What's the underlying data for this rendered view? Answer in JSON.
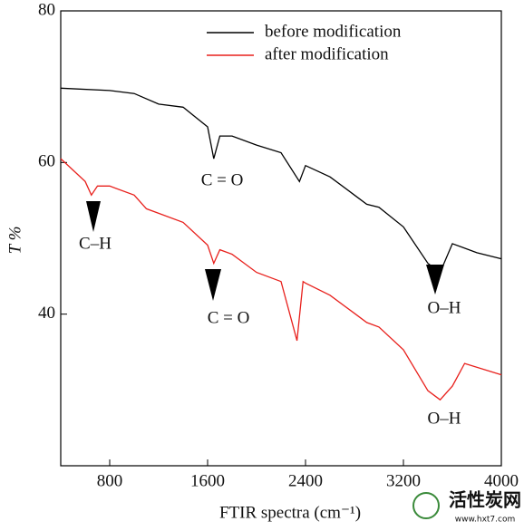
{
  "chart_data": {
    "type": "line",
    "xlabel": "FTIR spectra (cm⁻¹)",
    "ylabel": "T %",
    "xlim": [
      400,
      4000
    ],
    "ylim": [
      20,
      80
    ],
    "xticks": [
      800,
      1600,
      2400,
      3200,
      4000
    ],
    "yticks": [
      40,
      60,
      80
    ],
    "legend": "top-right",
    "series": [
      {
        "name": "before modification",
        "color": "#000000",
        "x": [
          400,
          800,
          1000,
          1200,
          1400,
          1600,
          1650,
          1700,
          1800,
          2000,
          2200,
          2350,
          2400,
          2600,
          2800,
          2900,
          3000,
          3200,
          3400,
          3500,
          3600,
          3800,
          4000
        ],
        "values": [
          69.8,
          69.5,
          69.1,
          67.7,
          67.3,
          64.7,
          60.5,
          63.5,
          63.5,
          62.3,
          61.3,
          57.5,
          59.6,
          58.1,
          55.7,
          54.5,
          54.1,
          51.5,
          46.7,
          45.5,
          49.3,
          48.1,
          47.3
        ]
      },
      {
        "name": "after modification",
        "color": "#e8201c",
        "x": [
          400,
          600,
          650,
          700,
          800,
          1000,
          1100,
          1200,
          1400,
          1600,
          1650,
          1700,
          1800,
          2000,
          2200,
          2330,
          2380,
          2400,
          2600,
          2800,
          2900,
          3000,
          3200,
          3400,
          3500,
          3600,
          3700,
          4000
        ],
        "values": [
          60.5,
          57.5,
          55.7,
          56.9,
          56.9,
          55.7,
          53.9,
          53.3,
          52.1,
          49.1,
          46.7,
          48.5,
          47.9,
          45.5,
          44.3,
          36.5,
          44.3,
          44.1,
          42.5,
          40.1,
          38.9,
          38.3,
          35.3,
          29.9,
          28.7,
          30.5,
          33.5,
          32
        ]
      }
    ],
    "annotations": [
      "C = O",
      "C–H",
      "C = O",
      "O–H",
      "O–H"
    ]
  },
  "watermark": {
    "title": "活性炭网",
    "url": "www.hxt7.com"
  }
}
